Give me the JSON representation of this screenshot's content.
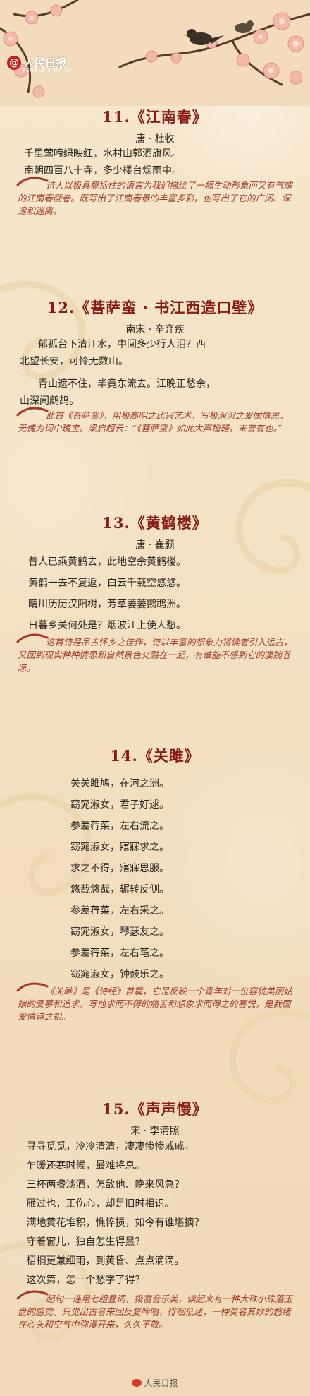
{
  "brand": {
    "name": "人民日报",
    "sub": "PEOPLE'S DAILY",
    "at": "@"
  },
  "colors": {
    "title": "#8a1b13",
    "note": "#a43a26",
    "background": "#f3e2c4"
  },
  "poems": [
    {
      "title": "11.《江南春》",
      "author": "唐 · 杜牧",
      "lines": [
        "千里莺啼绿映红，水村山郭酒旗风。",
        "南朝四百八十寺，多少楼台烟雨中。"
      ],
      "note": "诗人以极具概括性的语言为我们描绘了一幅生动形象而又有气魄的江南春画卷。既写出了江南春景的丰富多彩，也写出了它的广阔、深邃和迷离。"
    },
    {
      "title": "12.《菩萨蛮 · 书江西造口壁》",
      "author": "南宋 · 辛弃疾",
      "lines": [
        "郁孤台下清江水，中间多少行人泪？西",
        "北望长安，可怜无数山。",
        "青山遮不住，毕竟东流去。江晚正愁余，",
        "山深闻鹧鸪。"
      ],
      "note": "此首《菩萨蛮》，用极高明之比兴艺术，写极深沉之爱国情思，无愧为词中瑰宝。梁启超云：“《菩萨蛮》如此大声镗鞳，未曾有也。”"
    },
    {
      "title": "13.《黄鹤楼》",
      "author": "唐 · 崔颢",
      "lines": [
        "昔人已乘黄鹤去，此地空余黄鹤楼。",
        "黄鹤一去不复返，白云千载空悠悠。",
        "晴川历历汉阳树，芳草萋萋鹦鹉洲。",
        "日暮乡关何处是？烟波江上使人愁。"
      ],
      "note": "这首诗是吊古怀乡之佳作，诗以丰富的想象力将读者引入远古，又回到现实种种情思和自然景色交融在一起，有谁能不感到它的凄婉苍凉。"
    },
    {
      "title": "14.《关雎》",
      "author": "",
      "lines": [
        "关关雎鸠，在河之洲。",
        "窈窕淑女，君子好逑。",
        "参差荇菜，左右流之。",
        "窈窕淑女，寤寐求之。",
        "求之不得，寤寐思服。",
        "悠哉悠哉，辗转反侧。",
        "参差荇菜，左右采之。",
        "窈窕淑女，琴瑟友之。",
        "参差荇菜，左右芼之。",
        "窈窕淑女，钟鼓乐之。"
      ],
      "note": "《关雎》是《诗经》首篇，它是反映一个青年对一位容貌美丽姑娘的爱慕和追求，写他求而不得的痛苦和想象求而得之的喜悦，是我国爱情诗之祖。"
    },
    {
      "title": "15.《声声慢》",
      "author": "宋 · 李清照",
      "lines": [
        "寻寻觅觅，冷冷清清，凄凄惨惨戚戚。",
        "乍暖还寒时候，最难将息。",
        "三杯两盏淡酒，怎敌他、晚来风急？",
        "雁过也，正伤心，却是旧时相识。",
        "满地黄花堆积，憔悴损，如今有谁堪摘？",
        "守着窗儿，独自怎生得黑？",
        "梧桐更兼细雨，到黄昏、点点滴滴。",
        "这次第，怎一个愁字了得？"
      ],
      "note": "起句一连用七组叠词，极富音乐美，读起来有一种大珠小珠落玉盘的感觉。只觉出古音来回反复吟唱，徘徊低迷，一种莫名其妙的愁绪在心头和空气中弥漫开来，久久不散。"
    }
  ],
  "footer": {
    "text": "人民日报"
  }
}
